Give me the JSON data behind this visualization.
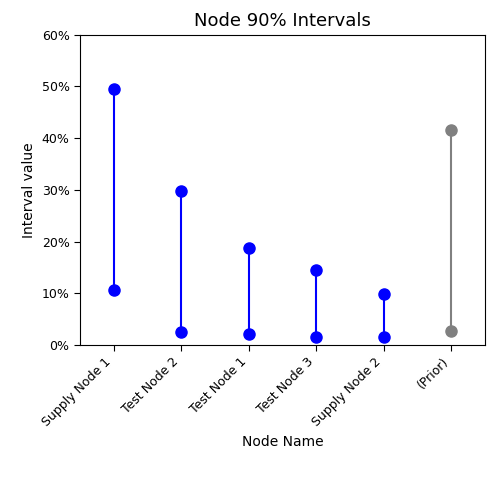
{
  "title": "Node 90% Intervals",
  "xlabel": "Node Name",
  "ylabel": "Interval value",
  "categories": [
    "Supply Node 1",
    "Test Node 2",
    "Test Node 1",
    "Test Node 3",
    "Supply Node 2",
    "(Prior)"
  ],
  "lower": [
    0.107,
    0.025,
    0.022,
    0.016,
    0.015,
    0.028
  ],
  "upper": [
    0.495,
    0.298,
    0.188,
    0.145,
    0.099,
    0.415
  ],
  "colors": [
    "blue",
    "blue",
    "blue",
    "blue",
    "blue",
    "gray"
  ],
  "ylim": [
    0.0,
    0.6
  ],
  "yticks": [
    0.0,
    0.1,
    0.2,
    0.3,
    0.4,
    0.5,
    0.6
  ],
  "marker_size": 8,
  "line_width": 1.5,
  "background_color": "#ffffff",
  "title_fontsize": 13,
  "axis_label_fontsize": 10,
  "tick_fontsize": 9
}
